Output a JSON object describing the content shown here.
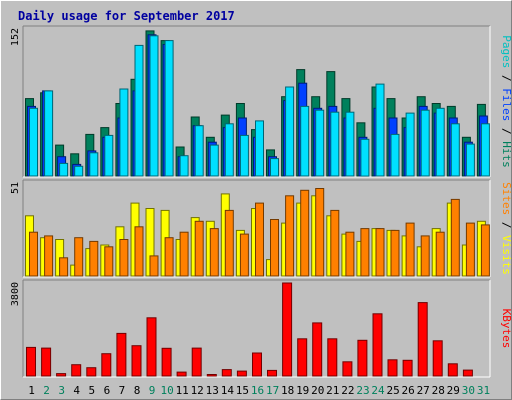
{
  "chart_data": {
    "type": "bar",
    "title": "Daily usage for September 2017",
    "categories": [
      "1",
      "2",
      "3",
      "4",
      "5",
      "6",
      "7",
      "8",
      "9",
      "10",
      "11",
      "12",
      "13",
      "14",
      "15",
      "16",
      "17",
      "18",
      "19",
      "20",
      "21",
      "22",
      "23",
      "24",
      "25",
      "26",
      "27",
      "28",
      "29",
      "30",
      "31"
    ],
    "weekend_days": [
      2,
      3,
      9,
      10,
      16,
      17,
      23,
      24,
      30,
      31
    ],
    "panels": [
      {
        "id": "hits",
        "ylabel_parts": [
          "Pages",
          " / ",
          "Files",
          " / ",
          "Hits"
        ],
        "ylabel_colors": [
          "#00c0c0",
          "#000000",
          "#0040ff",
          "#000000",
          "#00805c"
        ],
        "y_tick_label": "152",
        "ymax": 152,
        "series": [
          {
            "name": "Hits",
            "color": "#00805c",
            "values": [
              80,
              86,
              32,
              23,
              43,
              50,
              75,
              100,
              150,
              140,
              30,
              61,
              40,
              63,
              75,
              48,
              27,
              82,
              110,
              82,
              108,
              80,
              55,
              92,
              80,
              60,
              82,
              75,
              72,
              40,
              74
            ]
          },
          {
            "name": "Files",
            "color": "#0040ff",
            "values": [
              72,
              88,
              20,
              12,
              26,
              40,
              60,
              88,
              146,
              136,
              20,
              52,
              35,
              50,
              60,
              40,
              20,
              78,
              96,
              70,
              72,
              60,
              40,
              70,
              60,
              50,
              72,
              65,
              60,
              35,
              62
            ]
          },
          {
            "name": "Pages",
            "color": "#00e0ff",
            "values": [
              70,
              88,
              13,
              10,
              24,
              42,
              90,
              135,
              145,
              140,
              21,
              52,
              32,
              54,
              42,
              57,
              18,
              92,
              72,
              68,
              66,
              66,
              38,
              95,
              43,
              65,
              68,
              70,
              54,
              33,
              54
            ]
          }
        ]
      },
      {
        "id": "visits",
        "ylabel_parts": [
          "Sites",
          " / ",
          "Visits"
        ],
        "ylabel_colors": [
          "#ff8000",
          "#000000",
          "#ffff00"
        ],
        "y_tick_label": "51",
        "ymax": 51,
        "series": [
          {
            "name": "Visits",
            "color": "#ffff00",
            "values": [
              33,
              21,
              20,
              6,
              15,
              17,
              27,
              40,
              37,
              36,
              20,
              32,
              30,
              45,
              25,
              37,
              9,
              29,
              40,
              44,
              33,
              23,
              19,
              26,
              25,
              22,
              16,
              26,
              40,
              17,
              30
            ]
          },
          {
            "name": "Sites",
            "color": "#ff8000",
            "values": [
              24,
              22,
              10,
              21,
              19,
              16,
              20,
              27,
              11,
              21,
              24,
              30,
              26,
              36,
              23,
              40,
              31,
              44,
              47,
              48,
              36,
              24,
              26,
              26,
              25,
              29,
              22,
              24,
              42,
              29,
              28
            ]
          }
        ]
      },
      {
        "id": "kbytes",
        "ylabel_parts": [
          "KBytes"
        ],
        "ylabel_colors": [
          "#ff0000"
        ],
        "y_tick_label": "3800",
        "ymax": 3800,
        "series": [
          {
            "name": "KBytes",
            "color": "#ff0000",
            "values": [
              1170,
              1140,
              100,
              460,
              340,
              910,
              1740,
              1240,
              2380,
              1130,
              160,
              1140,
              60,
              260,
              200,
              940,
              230,
              3800,
              1520,
              2170,
              1520,
              580,
              1460,
              2540,
              660,
              640,
              3000,
              1440,
              500,
              240,
              0
            ]
          }
        ]
      }
    ]
  }
}
